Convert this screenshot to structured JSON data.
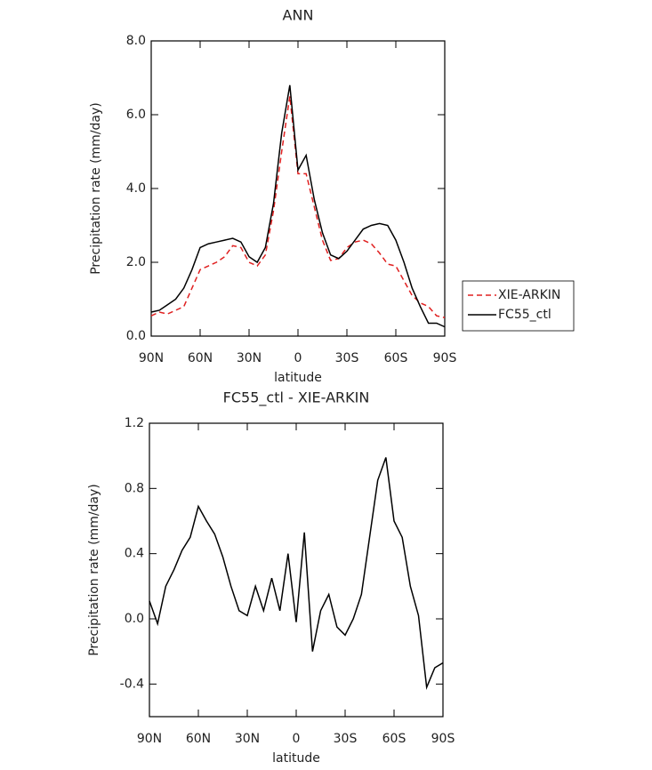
{
  "chart_data": [
    {
      "type": "line",
      "title": "ANN",
      "xlabel": "latitude",
      "ylabel": "Precipitation rate (mm/day)",
      "x": [
        90,
        85,
        80,
        75,
        70,
        65,
        60,
        55,
        50,
        45,
        40,
        35,
        30,
        25,
        20,
        15,
        10,
        5,
        0,
        -5,
        -10,
        -15,
        -20,
        -25,
        -30,
        -35,
        -40,
        -45,
        -50,
        -55,
        -60,
        -65,
        -70,
        -75,
        -80,
        -85,
        -90
      ],
      "series": [
        {
          "name": "XIE-ARKIN",
          "color": "#e02020",
          "linestyle": "dashed",
          "values": [
            0.55,
            0.65,
            0.6,
            0.7,
            0.8,
            1.3,
            1.8,
            1.9,
            2.0,
            2.15,
            2.45,
            2.4,
            2.0,
            1.9,
            2.2,
            3.4,
            5.0,
            6.5,
            4.4,
            4.4,
            3.5,
            2.6,
            2.05,
            2.1,
            2.4,
            2.55,
            2.6,
            2.5,
            2.25,
            1.95,
            1.9,
            1.5,
            1.1,
            0.9,
            0.8,
            0.55,
            0.5
          ]
        },
        {
          "name": "FC55_ctl",
          "color": "#000000",
          "linestyle": "solid",
          "values": [
            0.65,
            0.7,
            0.85,
            1.0,
            1.3,
            1.8,
            2.4,
            2.5,
            2.55,
            2.6,
            2.65,
            2.55,
            2.15,
            2.0,
            2.4,
            3.6,
            5.5,
            6.8,
            4.5,
            4.9,
            3.7,
            2.8,
            2.2,
            2.1,
            2.3,
            2.6,
            2.9,
            3.0,
            3.05,
            3.0,
            2.6,
            2.0,
            1.3,
            0.8,
            0.35,
            0.35,
            0.25
          ]
        }
      ],
      "xlim": [
        90,
        -90
      ],
      "xticks": [
        {
          "value": 90,
          "label": "90N"
        },
        {
          "value": 60,
          "label": "60N"
        },
        {
          "value": 30,
          "label": "30N"
        },
        0,
        {
          "value": -30,
          "label": "30S"
        },
        {
          "value": -60,
          "label": "60S"
        },
        {
          "value": -90,
          "label": "90S"
        }
      ],
      "ylim": [
        0,
        8
      ],
      "yticks": [
        {
          "value": 0,
          "label": "0.0"
        },
        {
          "value": 2,
          "label": "2.0"
        },
        {
          "value": 4,
          "label": "4.0"
        },
        {
          "value": 6,
          "label": "6.0"
        },
        {
          "value": 8,
          "label": "8.0"
        }
      ],
      "legend": "right"
    },
    {
      "type": "line",
      "title": "FC55_ctl - XIE-ARKIN",
      "xlabel": "latitude",
      "ylabel": "Precipitation rate (mm/day)",
      "x": [
        90,
        85,
        80,
        75,
        70,
        65,
        60,
        55,
        50,
        45,
        40,
        35,
        30,
        25,
        20,
        15,
        10,
        5,
        0,
        -5,
        -10,
        -15,
        -20,
        -25,
        -30,
        -35,
        -40,
        -45,
        -50,
        -55,
        -60,
        -65,
        -70,
        -75,
        -80,
        -85,
        -90
      ],
      "series": [
        {
          "color": "#000000",
          "linestyle": "solid",
          "values": [
            0.11,
            -0.03,
            0.2,
            0.3,
            0.42,
            0.5,
            0.69,
            0.6,
            0.52,
            0.38,
            0.2,
            0.05,
            0.02,
            0.2,
            0.05,
            0.25,
            0.05,
            0.4,
            -0.02,
            0.53,
            -0.2,
            0.05,
            0.15,
            -0.05,
            -0.1,
            0.0,
            0.15,
            0.5,
            0.85,
            0.99,
            0.6,
            0.5,
            0.2,
            0.02,
            -0.42,
            -0.3,
            -0.27
          ]
        }
      ],
      "xlim": [
        90,
        -90
      ],
      "xticks": [
        {
          "value": 90,
          "label": "90N"
        },
        {
          "value": 60,
          "label": "60N"
        },
        {
          "value": 30,
          "label": "30N"
        },
        0,
        {
          "value": -30,
          "label": "30S"
        },
        {
          "value": -60,
          "label": "60S"
        },
        {
          "value": -90,
          "label": "90S"
        }
      ],
      "ylim": [
        -0.6,
        1.2
      ],
      "yticks": [
        {
          "value": -0.4,
          "label": "-0.4"
        },
        {
          "value": 0,
          "label": "0.0"
        },
        {
          "value": 0.4,
          "label": "0.4"
        },
        {
          "value": 0.8,
          "label": "0.8"
        },
        {
          "value": 1.2,
          "label": "1.2"
        }
      ]
    }
  ]
}
